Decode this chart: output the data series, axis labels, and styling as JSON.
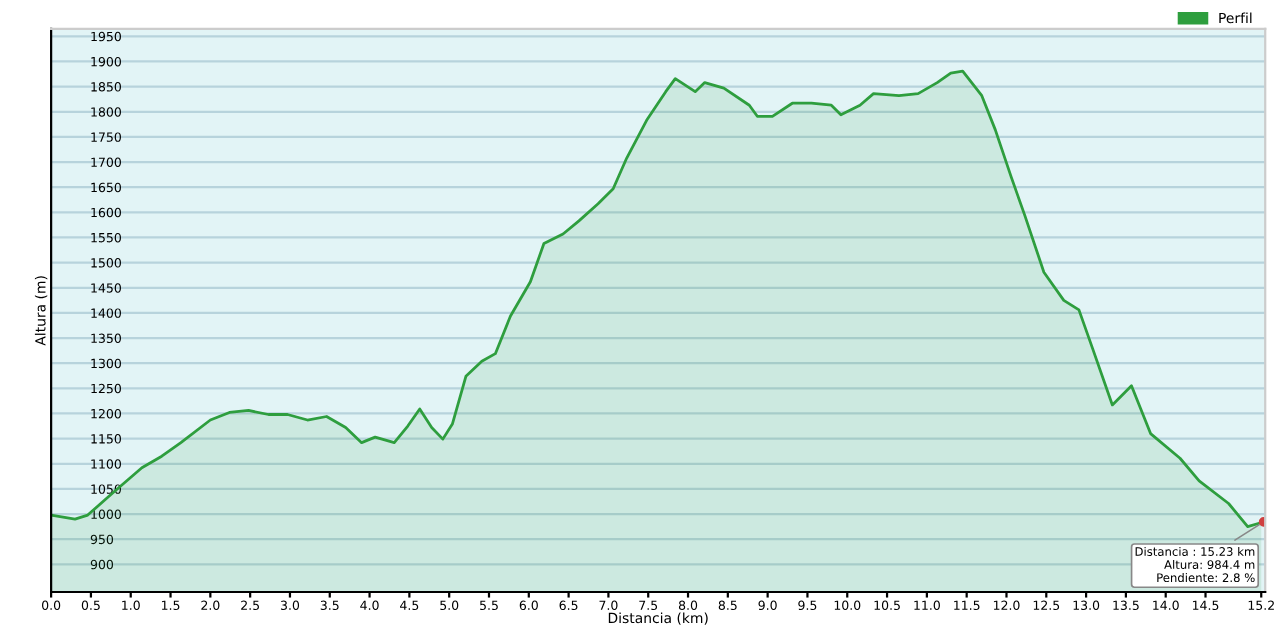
{
  "chart_data": {
    "type": "area",
    "xlabel": "Distancia (km)",
    "ylabel": "Altura (m)",
    "x": [
      0,
      0.3,
      0.46,
      0.78,
      1.14,
      1.39,
      1.63,
      2.0,
      2.24,
      2.48,
      2.73,
      2.97,
      3.22,
      3.46,
      3.7,
      3.9,
      4.07,
      4.31,
      4.48,
      4.63,
      4.78,
      4.92,
      5.04,
      5.21,
      5.41,
      5.58,
      5.77,
      6.02,
      6.19,
      6.43,
      6.63,
      6.87,
      7.06,
      7.23,
      7.48,
      7.72,
      7.84,
      8.09,
      8.21,
      8.45,
      8.77,
      8.87,
      9.06,
      9.31,
      9.55,
      9.8,
      9.92,
      10.16,
      10.33,
      10.65,
      10.89,
      11.13,
      11.3,
      11.45,
      11.69,
      11.86,
      12.06,
      12.23,
      12.47,
      12.72,
      12.91,
      13.08,
      13.33,
      13.57,
      13.81,
      14.18,
      14.42,
      14.79,
      15.03,
      15.2
    ],
    "series": [
      {
        "name": "Perfil",
        "color": "#2e9e3e",
        "values": [
          998,
          990,
          998,
          1043,
          1092,
          1115,
          1142,
          1187,
          1202,
          1206,
          1198,
          1198,
          1187,
          1194,
          1172,
          1142,
          1153,
          1142,
          1175,
          1209,
          1172,
          1149,
          1179,
          1274,
          1304,
          1319,
          1394,
          1462,
          1538,
          1557,
          1583,
          1617,
          1647,
          1708,
          1783,
          1840,
          1866,
          1840,
          1858,
          1847,
          1813,
          1791,
          1791,
          1817,
          1817,
          1813,
          1794,
          1813,
          1836,
          1832,
          1836,
          1858,
          1877,
          1881,
          1832,
          1764,
          1670,
          1594,
          1481,
          1425,
          1406,
          1330,
          1217,
          1255,
          1160,
          1111,
          1066,
          1021,
          975,
          983
        ]
      }
    ],
    "xlim": [
      0,
      15.25
    ],
    "ylim": [
      845,
      1965
    ],
    "xticks": [
      {
        "value": 0,
        "label": "0.0"
      },
      {
        "value": 0.5,
        "label": "0.5"
      },
      {
        "value": 1,
        "label": "1.0"
      },
      {
        "value": 1.5,
        "label": "1.5"
      },
      {
        "value": 2,
        "label": "2.0"
      },
      {
        "value": 2.5,
        "label": "2.5"
      },
      {
        "value": 3,
        "label": "3.0"
      },
      {
        "value": 3.5,
        "label": "3.5"
      },
      {
        "value": 4,
        "label": "4.0"
      },
      {
        "value": 4.5,
        "label": "4.5"
      },
      {
        "value": 5,
        "label": "5.0"
      },
      {
        "value": 5.5,
        "label": "5.5"
      },
      {
        "value": 6,
        "label": "6.0"
      },
      {
        "value": 6.5,
        "label": "6.5"
      },
      {
        "value": 7,
        "label": "7.0"
      },
      {
        "value": 7.5,
        "label": "7.5"
      },
      {
        "value": 8,
        "label": "8.0"
      },
      {
        "value": 8.5,
        "label": "8.5"
      },
      {
        "value": 9,
        "label": "9.0"
      },
      {
        "value": 9.5,
        "label": "9.5"
      },
      {
        "value": 10,
        "label": "10.0"
      },
      {
        "value": 10.5,
        "label": "10.5"
      },
      {
        "value": 11,
        "label": "11.0"
      },
      {
        "value": 11.5,
        "label": "11.5"
      },
      {
        "value": 12,
        "label": "12.0"
      },
      {
        "value": 12.5,
        "label": "12.5"
      },
      {
        "value": 13,
        "label": "13.0"
      },
      {
        "value": 13.5,
        "label": "13.5"
      },
      {
        "value": 14,
        "label": "14.0"
      },
      {
        "value": 14.5,
        "label": "14.5"
      },
      15.2
    ],
    "yticks": [
      900,
      950,
      1000,
      1050,
      1100,
      1150,
      1200,
      1250,
      1300,
      1350,
      1400,
      1450,
      1500,
      1550,
      1600,
      1650,
      1700,
      1750,
      1800,
      1850,
      1900,
      1950
    ],
    "grid": "y",
    "legend": "top right",
    "annotations": [
      {
        "text": "Distancia : 15.23 km\nAltura: 984.4 m\nPendiente: 2.8 %",
        "x": 15.23,
        "y": 984.4
      }
    ]
  }
}
